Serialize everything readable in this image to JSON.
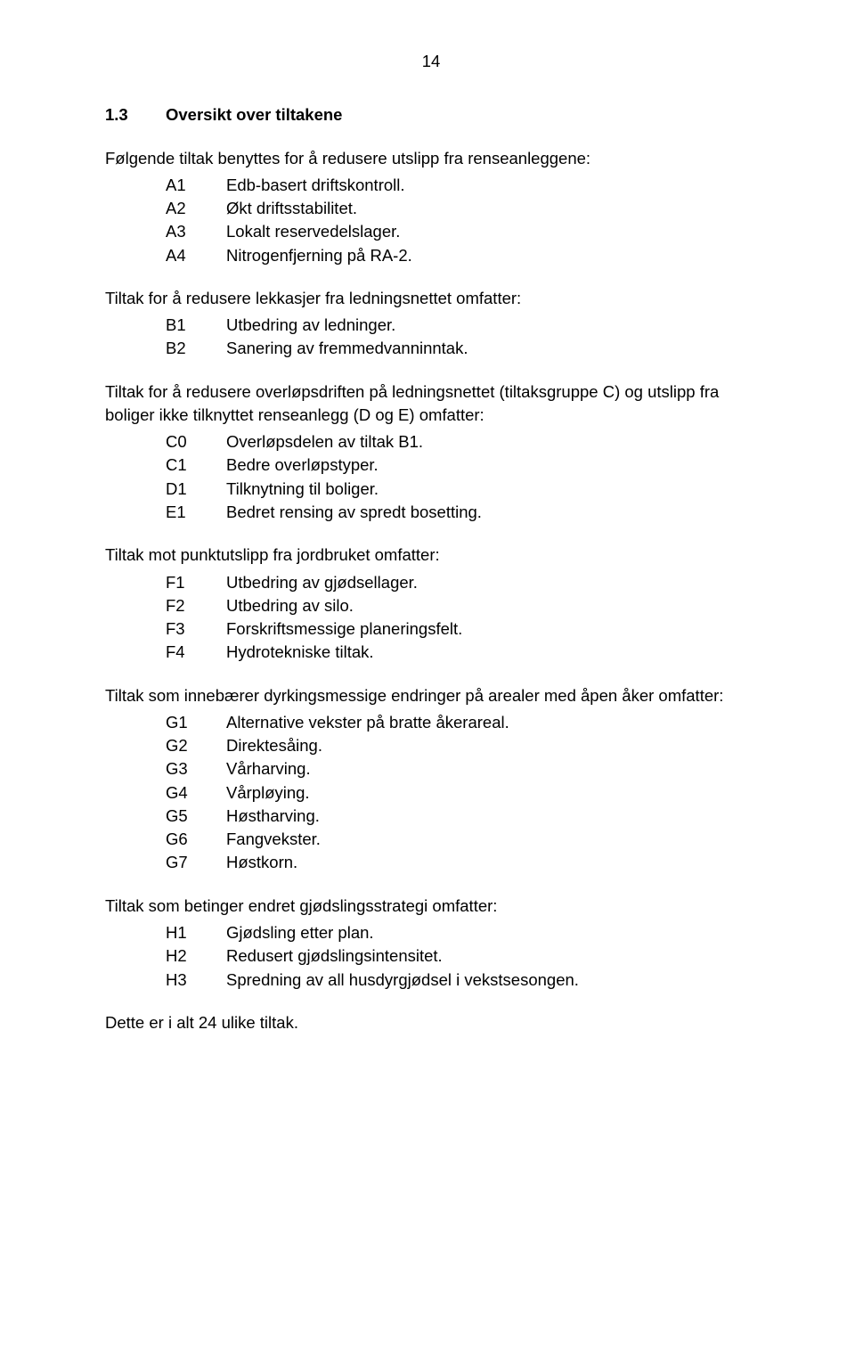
{
  "pageNumber": "14",
  "section": {
    "number": "1.3",
    "title": "Oversikt over tiltakene"
  },
  "blocks": [
    {
      "intro": "Følgende tiltak benyttes for å redusere utslipp fra renseanleggene:",
      "items": [
        {
          "code": "A1",
          "text": "Edb-basert driftskontroll."
        },
        {
          "code": "A2",
          "text": "Økt driftsstabilitet."
        },
        {
          "code": "A3",
          "text": "Lokalt reservedelslager."
        },
        {
          "code": "A4",
          "text": "Nitrogenfjerning på RA-2."
        }
      ]
    },
    {
      "intro": "Tiltak for å redusere lekkasjer fra ledningsnettet omfatter:",
      "items": [
        {
          "code": "B1",
          "text": "Utbedring av ledninger."
        },
        {
          "code": "B2",
          "text": "Sanering av fremmedvanninntak."
        }
      ]
    },
    {
      "intro": "Tiltak for å redusere overløpsdriften på ledningsnettet (tiltaksgruppe C) og utslipp fra boliger ikke tilknyttet renseanlegg (D og E) omfatter:",
      "items": [
        {
          "code": "C0",
          "text": "Overløpsdelen av tiltak B1."
        },
        {
          "code": "C1",
          "text": "Bedre overløpstyper."
        },
        {
          "code": "D1",
          "text": "Tilknytning til boliger."
        },
        {
          "code": "E1",
          "text": "Bedret rensing av spredt bosetting."
        }
      ]
    },
    {
      "intro": "Tiltak mot punktutslipp fra jordbruket omfatter:",
      "items": [
        {
          "code": "F1",
          "text": "Utbedring av gjødsellager."
        },
        {
          "code": "F2",
          "text": "Utbedring av silo."
        },
        {
          "code": "F3",
          "text": "Forskriftsmessige planeringsfelt."
        },
        {
          "code": "F4",
          "text": "Hydrotekniske tiltak."
        }
      ]
    },
    {
      "intro": "Tiltak som innebærer dyrkingsmessige endringer på arealer med åpen åker omfatter:",
      "items": [
        {
          "code": "G1",
          "text": "Alternative vekster på bratte åkerareal."
        },
        {
          "code": "G2",
          "text": "Direktesåing."
        },
        {
          "code": "G3",
          "text": "Vårharving."
        },
        {
          "code": "G4",
          "text": "Vårpløying."
        },
        {
          "code": "G5",
          "text": "Høstharving."
        },
        {
          "code": "G6",
          "text": "Fangvekster."
        },
        {
          "code": "G7",
          "text": "Høstkorn."
        }
      ]
    },
    {
      "intro": "Tiltak som betinger endret gjødslingsstrategi omfatter:",
      "items": [
        {
          "code": "H1",
          "text": "Gjødsling etter plan."
        },
        {
          "code": "H2",
          "text": "Redusert gjødslingsintensitet."
        },
        {
          "code": "H3",
          "text": "Spredning av all husdyrgjødsel i vekstsesongen."
        }
      ]
    }
  ],
  "finalLine": "Dette er i alt 24 ulike tiltak."
}
